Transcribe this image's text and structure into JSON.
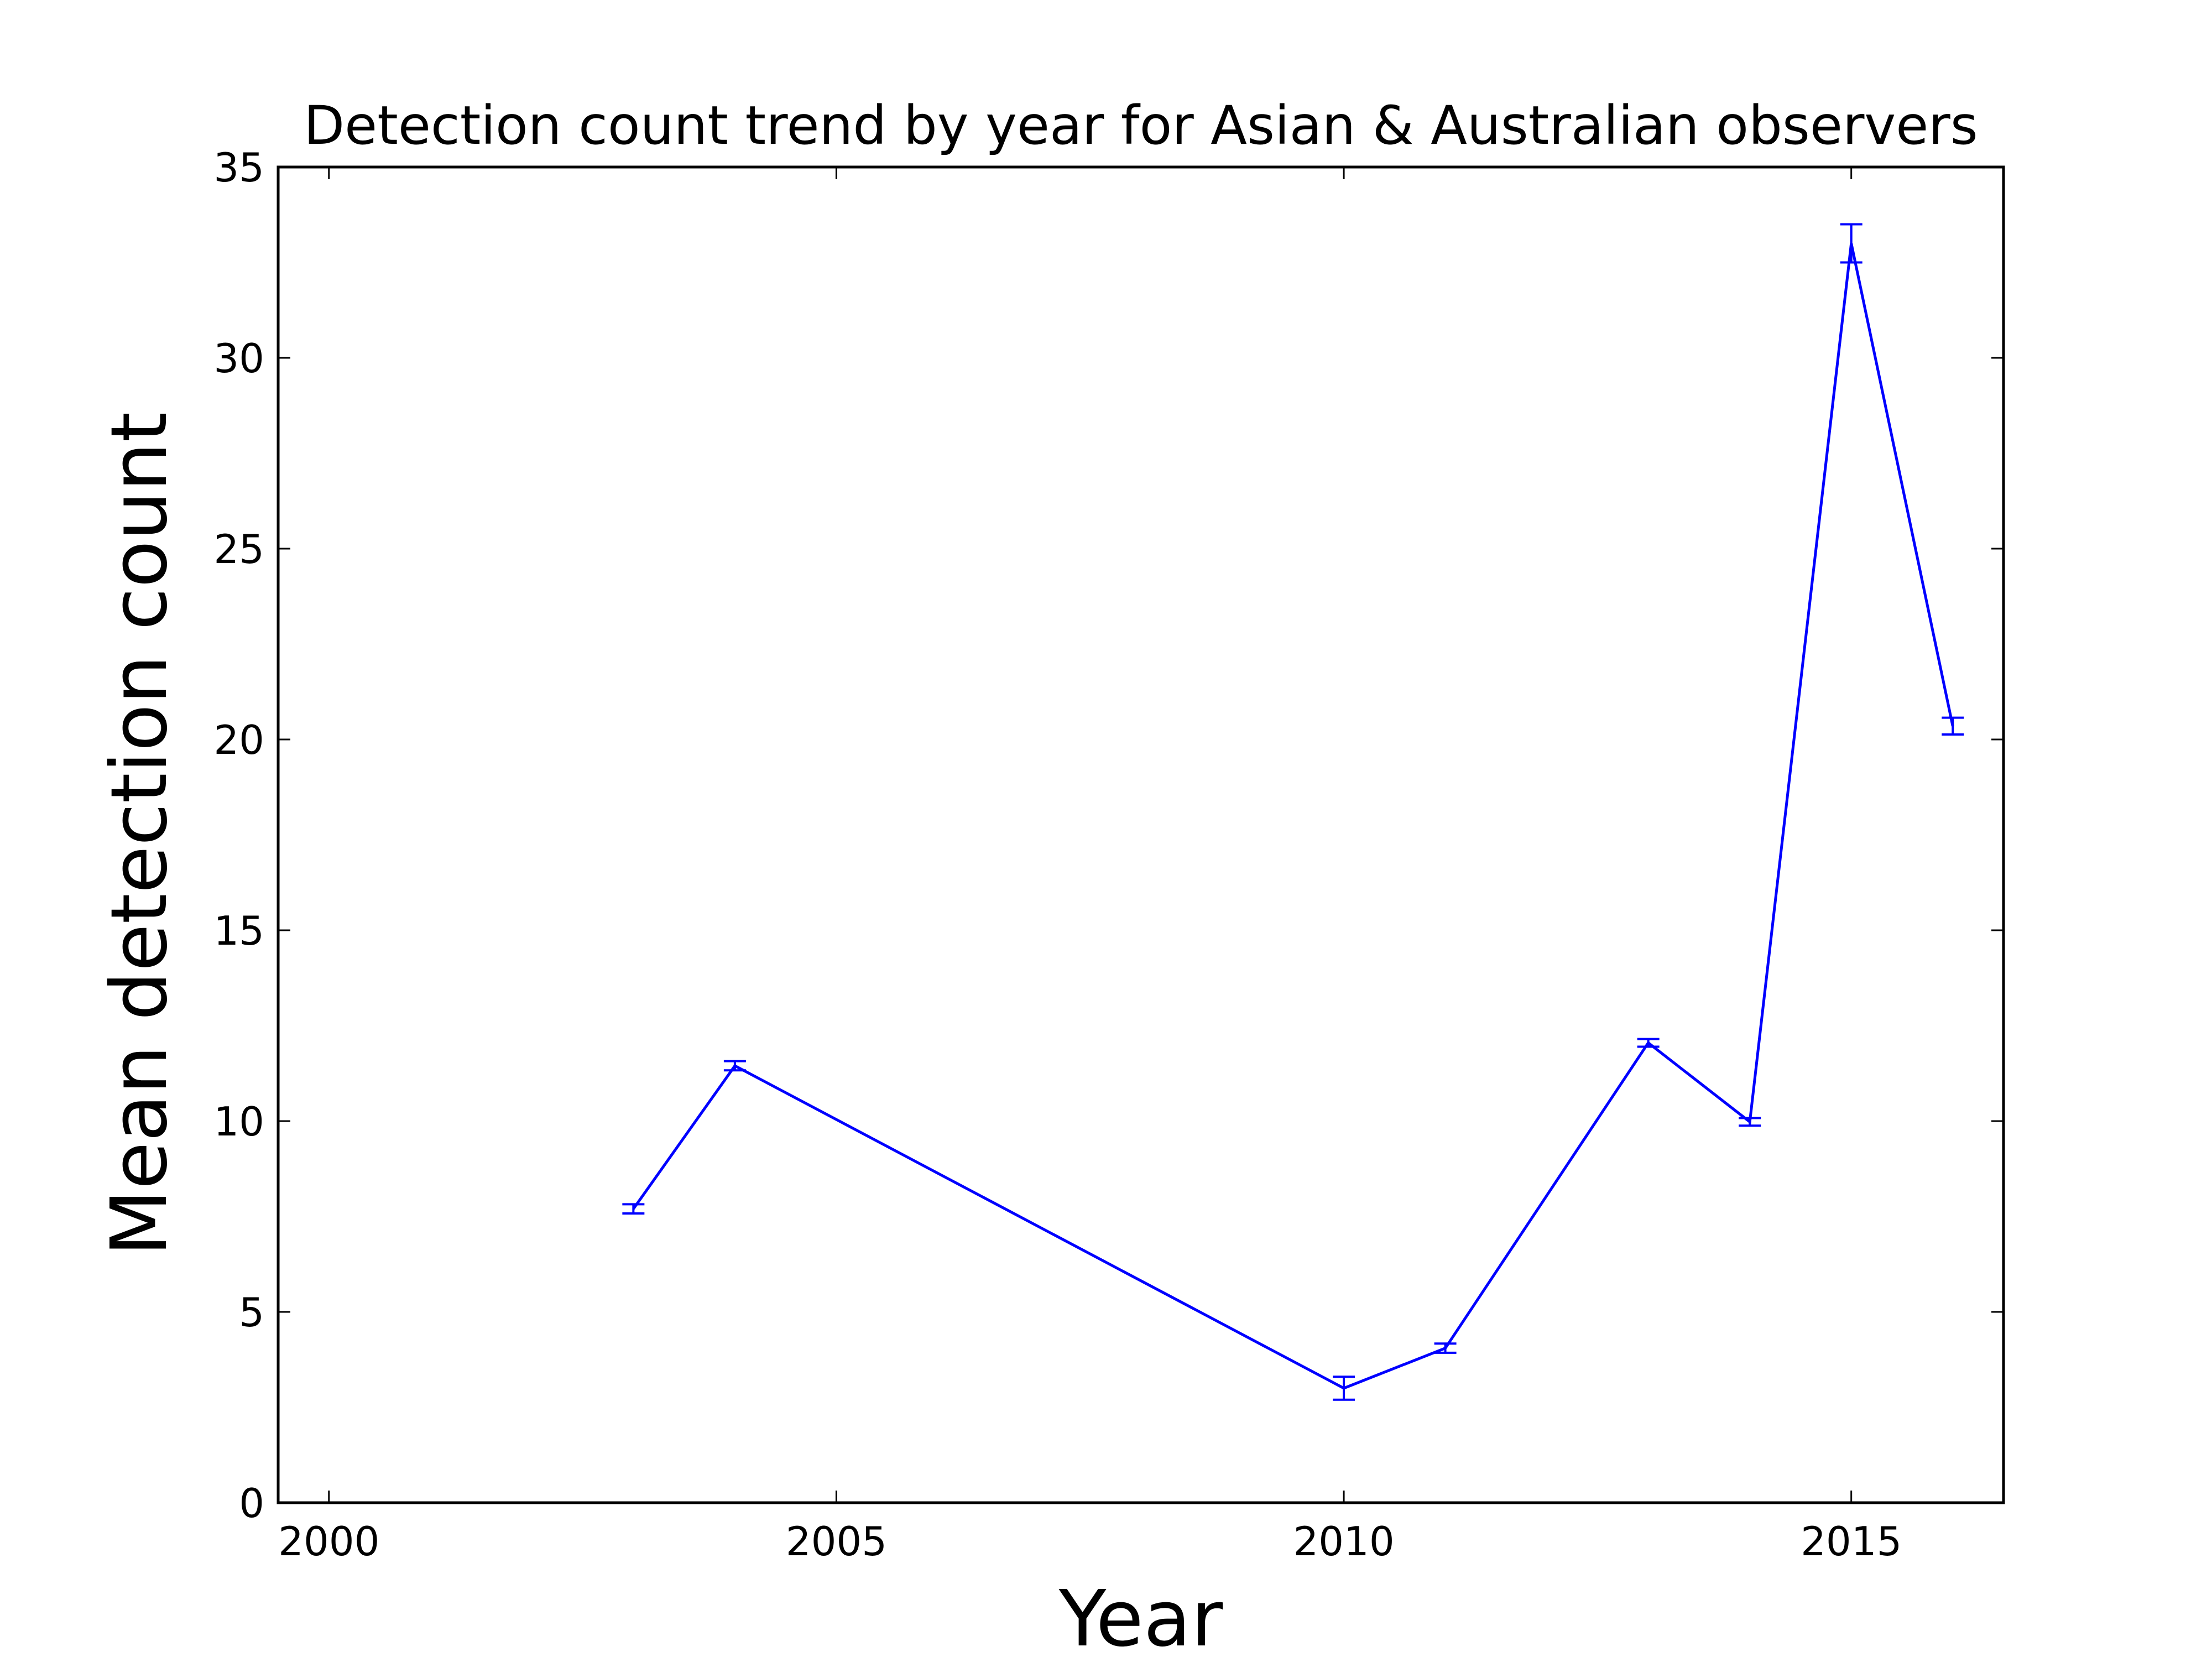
{
  "chart_data": {
    "type": "line",
    "title": "Detection count trend by year for Asian & Australian observers",
    "xlabel": "Year",
    "ylabel": "Mean detection count",
    "xlim": [
      1999.5,
      2016.5
    ],
    "ylim": [
      0,
      35
    ],
    "xticks": [
      "2000",
      "2005",
      "2010",
      "2015"
    ],
    "xtick_values": [
      2000,
      2005,
      2010,
      2015
    ],
    "yticks": [
      "0",
      "5",
      "10",
      "15",
      "20",
      "25",
      "30",
      "35"
    ],
    "ytick_values": [
      0,
      5,
      10,
      15,
      20,
      25,
      30,
      35
    ],
    "grid": false,
    "legend": "none",
    "color": "#0000ff",
    "series": [
      {
        "x": [
          2003,
          2004,
          2010,
          2011,
          2013,
          2014,
          2015,
          2016
        ],
        "y": [
          7.7,
          11.45,
          3.0,
          4.05,
          12.05,
          9.98,
          33.0,
          20.35
        ],
        "err": [
          0.12,
          0.12,
          0.3,
          0.12,
          0.1,
          0.1,
          0.5,
          0.22
        ]
      }
    ]
  }
}
